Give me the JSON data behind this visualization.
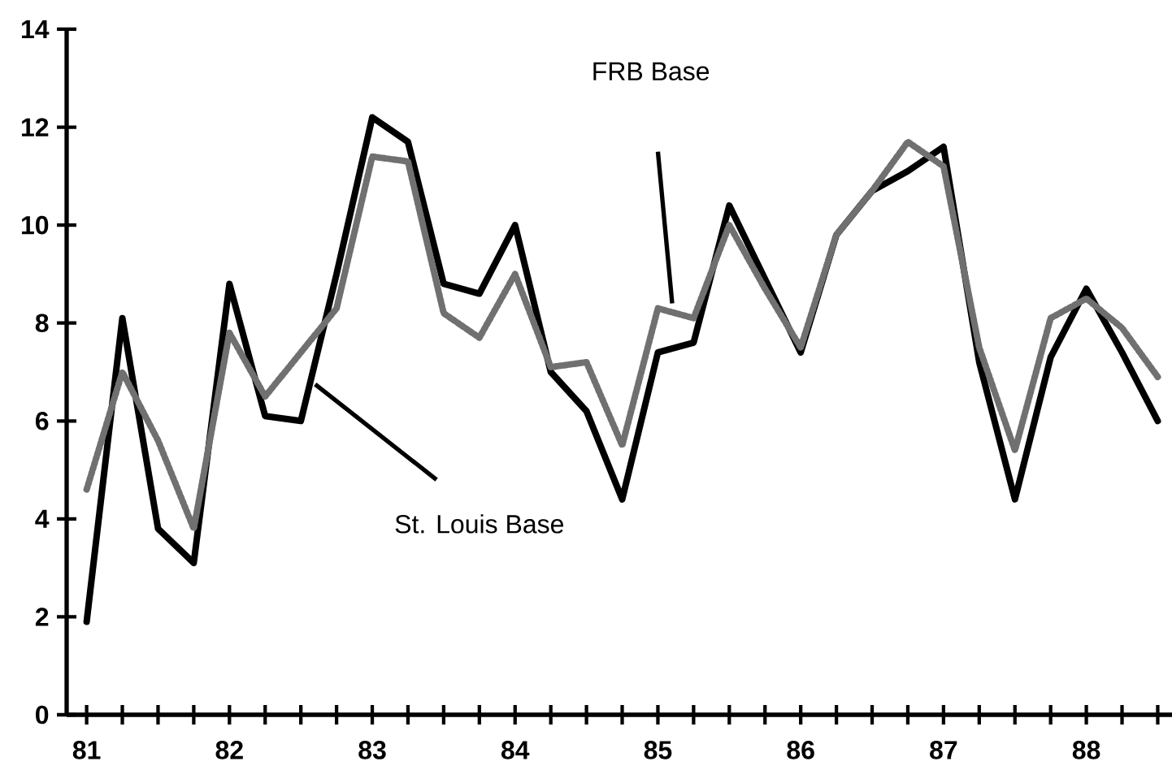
{
  "chart_data": {
    "type": "line",
    "x": [
      81,
      81.25,
      81.5,
      81.75,
      82,
      82.25,
      82.5,
      82.75,
      83,
      83.25,
      83.5,
      83.75,
      84,
      84.25,
      84.5,
      84.75,
      85,
      85.25,
      85.5,
      85.75,
      86,
      86.25,
      86.5,
      86.75,
      87,
      87.25,
      87.5,
      87.75,
      88,
      88.25,
      88.5
    ],
    "series": [
      {
        "color": "#000000",
        "line_style": "solid",
        "values": [
          1.9,
          8.1,
          3.8,
          3.1,
          8.8,
          6.1,
          6.0,
          9.0,
          12.2,
          11.7,
          8.8,
          8.6,
          10.0,
          7.0,
          6.2,
          4.4,
          7.4,
          7.6,
          10.4,
          8.9,
          7.4,
          9.8,
          10.7,
          11.1,
          11.6,
          7.2,
          4.4,
          7.3,
          8.7,
          7.4,
          6.0
        ]
      },
      {
        "color": "#707070",
        "line_style": "dotted",
        "values": [
          4.6,
          7.0,
          5.6,
          3.8,
          7.8,
          6.5,
          7.4,
          8.3,
          11.4,
          11.3,
          8.2,
          7.7,
          9.0,
          7.1,
          7.2,
          5.5,
          8.3,
          8.1,
          10.0,
          8.7,
          7.5,
          9.8,
          10.7,
          11.7,
          11.2,
          7.5,
          5.4,
          8.1,
          8.5,
          7.9,
          6.9
        ]
      }
    ],
    "xlim": [
      80.86,
      88.6
    ],
    "ylim": [
      0,
      14
    ],
    "xticks": [
      {
        "value": 81,
        "label": "81"
      },
      {
        "value": 81.25,
        "label": null
      },
      {
        "value": 81.5,
        "label": null
      },
      {
        "value": 81.75,
        "label": null
      },
      {
        "value": 82,
        "label": "82"
      },
      {
        "value": 82.25,
        "label": null
      },
      {
        "value": 82.5,
        "label": null
      },
      {
        "value": 82.75,
        "label": null
      },
      {
        "value": 83,
        "label": "83"
      },
      {
        "value": 83.25,
        "label": null
      },
      {
        "value": 83.5,
        "label": null
      },
      {
        "value": 83.75,
        "label": null
      },
      {
        "value": 84,
        "label": "84"
      },
      {
        "value": 84.25,
        "label": null
      },
      {
        "value": 84.5,
        "label": null
      },
      {
        "value": 84.75,
        "label": null
      },
      {
        "value": 85,
        "label": "85"
      },
      {
        "value": 85.25,
        "label": null
      },
      {
        "value": 85.5,
        "label": null
      },
      {
        "value": 85.75,
        "label": null
      },
      {
        "value": 86,
        "label": "86"
      },
      {
        "value": 86.25,
        "label": null
      },
      {
        "value": 86.5,
        "label": null
      },
      {
        "value": 86.75,
        "label": null
      },
      {
        "value": 87,
        "label": "87"
      },
      {
        "value": 87.25,
        "label": null
      },
      {
        "value": 87.5,
        "label": null
      },
      {
        "value": 87.75,
        "label": null
      },
      {
        "value": 88,
        "label": "88"
      },
      {
        "value": 88.25,
        "label": null
      },
      {
        "value": 88.5,
        "label": null
      }
    ],
    "yticks": [
      0,
      2,
      4,
      6,
      8,
      10,
      12,
      14
    ],
    "marker": "none",
    "annotations": [
      "FRB Base",
      "St. Louis Base"
    ]
  }
}
